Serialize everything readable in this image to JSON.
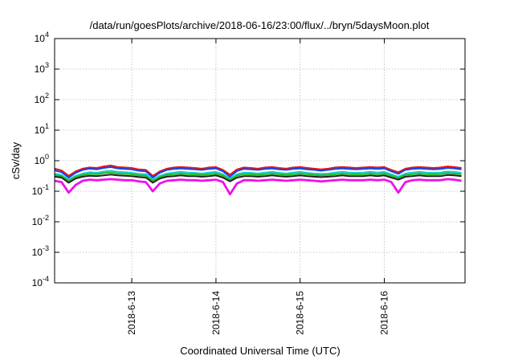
{
  "chart_data": {
    "type": "line",
    "title": "/data/run/goesPlots/archive/2018-06-16/23:00/flux/../bryn/5daysMoon.plot",
    "xlabel": "Coordinated Universal Time (UTC)",
    "ylabel": "cSv/day",
    "yscale": "log",
    "ylim": [
      0.0001,
      10000
    ],
    "xlim": [
      "2018-06-12 02:00",
      "2018-06-16 23:00"
    ],
    "grid": true,
    "y_ticks": [
      {
        "base": "10",
        "exp": "4",
        "value": 10000
      },
      {
        "base": "10",
        "exp": "3",
        "value": 1000
      },
      {
        "base": "10",
        "exp": "2",
        "value": 100
      },
      {
        "base": "10",
        "exp": "1",
        "value": 10
      },
      {
        "base": "10",
        "exp": "0",
        "value": 1
      },
      {
        "base": "10",
        "exp": "-1",
        "value": 0.1
      },
      {
        "base": "10",
        "exp": "-2",
        "value": 0.01
      },
      {
        "base": "10",
        "exp": "-3",
        "value": 0.001
      },
      {
        "base": "10",
        "exp": "-4",
        "value": 0.0001
      }
    ],
    "x_ticks": [
      {
        "label": "2018-6-13",
        "date": "2018-06-13 00:00"
      },
      {
        "label": "2018-6-14",
        "date": "2018-06-14 00:00"
      },
      {
        "label": "2018-6-15",
        "date": "2018-06-15 00:00"
      },
      {
        "label": "2018-6-16",
        "date": "2018-06-16 00:00"
      }
    ],
    "x": [
      "2018-06-12 02:00",
      "2018-06-12 04:00",
      "2018-06-12 06:00",
      "2018-06-12 08:00",
      "2018-06-12 10:00",
      "2018-06-12 12:00",
      "2018-06-12 14:00",
      "2018-06-12 16:00",
      "2018-06-12 18:00",
      "2018-06-12 20:00",
      "2018-06-12 22:00",
      "2018-06-13 00:00",
      "2018-06-13 02:00",
      "2018-06-13 04:00",
      "2018-06-13 06:00",
      "2018-06-13 08:00",
      "2018-06-13 10:00",
      "2018-06-13 12:00",
      "2018-06-13 14:00",
      "2018-06-13 16:00",
      "2018-06-13 18:00",
      "2018-06-13 20:00",
      "2018-06-13 22:00",
      "2018-06-14 00:00",
      "2018-06-14 02:00",
      "2018-06-14 04:00",
      "2018-06-14 06:00",
      "2018-06-14 08:00",
      "2018-06-14 10:00",
      "2018-06-14 12:00",
      "2018-06-14 14:00",
      "2018-06-14 16:00",
      "2018-06-14 18:00",
      "2018-06-14 20:00",
      "2018-06-14 22:00",
      "2018-06-15 00:00",
      "2018-06-15 02:00",
      "2018-06-15 04:00",
      "2018-06-15 06:00",
      "2018-06-15 08:00",
      "2018-06-15 10:00",
      "2018-06-15 12:00",
      "2018-06-15 14:00",
      "2018-06-15 16:00",
      "2018-06-15 18:00",
      "2018-06-15 20:00",
      "2018-06-15 22:00",
      "2018-06-16 00:00",
      "2018-06-16 02:00",
      "2018-06-16 04:00",
      "2018-06-16 06:00",
      "2018-06-16 08:00",
      "2018-06-16 10:00",
      "2018-06-16 12:00",
      "2018-06-16 14:00",
      "2018-06-16 16:00",
      "2018-06-16 18:00",
      "2018-06-16 20:00",
      "2018-06-16 22:00"
    ],
    "series": [
      {
        "color": "#ee1111",
        "values": [
          0.55,
          0.48,
          0.32,
          0.45,
          0.55,
          0.6,
          0.58,
          0.65,
          0.7,
          0.62,
          0.6,
          0.58,
          0.52,
          0.5,
          0.32,
          0.45,
          0.55,
          0.6,
          0.62,
          0.6,
          0.58,
          0.55,
          0.6,
          0.62,
          0.5,
          0.35,
          0.52,
          0.6,
          0.58,
          0.55,
          0.6,
          0.62,
          0.58,
          0.55,
          0.6,
          0.62,
          0.58,
          0.55,
          0.52,
          0.55,
          0.6,
          0.62,
          0.6,
          0.58,
          0.6,
          0.62,
          0.6,
          0.62,
          0.5,
          0.42,
          0.55,
          0.6,
          0.62,
          0.6,
          0.58,
          0.6,
          0.65,
          0.62,
          0.58
        ]
      },
      {
        "color": "#1144ee",
        "values": [
          0.48,
          0.42,
          0.28,
          0.4,
          0.5,
          0.55,
          0.52,
          0.58,
          0.62,
          0.56,
          0.54,
          0.52,
          0.47,
          0.45,
          0.28,
          0.4,
          0.5,
          0.54,
          0.56,
          0.54,
          0.52,
          0.5,
          0.54,
          0.56,
          0.45,
          0.3,
          0.46,
          0.54,
          0.52,
          0.5,
          0.54,
          0.56,
          0.52,
          0.5,
          0.54,
          0.56,
          0.52,
          0.5,
          0.47,
          0.5,
          0.54,
          0.56,
          0.54,
          0.52,
          0.54,
          0.56,
          0.54,
          0.56,
          0.45,
          0.37,
          0.5,
          0.54,
          0.56,
          0.54,
          0.52,
          0.54,
          0.58,
          0.56,
          0.52
        ]
      },
      {
        "color": "#11cccc",
        "values": [
          0.38,
          0.34,
          0.24,
          0.32,
          0.38,
          0.42,
          0.4,
          0.44,
          0.47,
          0.43,
          0.42,
          0.4,
          0.37,
          0.36,
          0.24,
          0.32,
          0.38,
          0.41,
          0.43,
          0.41,
          0.4,
          0.38,
          0.41,
          0.43,
          0.36,
          0.26,
          0.36,
          0.41,
          0.4,
          0.38,
          0.41,
          0.43,
          0.4,
          0.38,
          0.41,
          0.43,
          0.4,
          0.38,
          0.37,
          0.38,
          0.41,
          0.43,
          0.41,
          0.4,
          0.41,
          0.43,
          0.41,
          0.43,
          0.36,
          0.3,
          0.38,
          0.41,
          0.43,
          0.41,
          0.4,
          0.41,
          0.44,
          0.43,
          0.4
        ]
      },
      {
        "color": "#22bb22",
        "values": [
          0.34,
          0.31,
          0.22,
          0.29,
          0.34,
          0.37,
          0.36,
          0.39,
          0.41,
          0.38,
          0.37,
          0.36,
          0.33,
          0.32,
          0.22,
          0.29,
          0.34,
          0.36,
          0.38,
          0.36,
          0.36,
          0.34,
          0.36,
          0.38,
          0.32,
          0.24,
          0.32,
          0.36,
          0.36,
          0.34,
          0.36,
          0.38,
          0.36,
          0.34,
          0.36,
          0.38,
          0.36,
          0.34,
          0.33,
          0.34,
          0.36,
          0.38,
          0.36,
          0.36,
          0.36,
          0.38,
          0.36,
          0.38,
          0.32,
          0.27,
          0.34,
          0.36,
          0.38,
          0.36,
          0.36,
          0.36,
          0.39,
          0.38,
          0.36
        ]
      },
      {
        "color": "#222222",
        "values": [
          0.3,
          0.28,
          0.19,
          0.26,
          0.3,
          0.32,
          0.31,
          0.33,
          0.35,
          0.33,
          0.32,
          0.31,
          0.29,
          0.28,
          0.19,
          0.26,
          0.3,
          0.31,
          0.33,
          0.31,
          0.31,
          0.3,
          0.31,
          0.33,
          0.28,
          0.21,
          0.28,
          0.31,
          0.31,
          0.3,
          0.31,
          0.33,
          0.31,
          0.3,
          0.31,
          0.33,
          0.31,
          0.3,
          0.29,
          0.3,
          0.31,
          0.33,
          0.31,
          0.31,
          0.31,
          0.33,
          0.31,
          0.33,
          0.28,
          0.24,
          0.3,
          0.31,
          0.33,
          0.31,
          0.31,
          0.31,
          0.34,
          0.33,
          0.31
        ]
      },
      {
        "color": "#ee11ee",
        "values": [
          0.22,
          0.2,
          0.09,
          0.16,
          0.22,
          0.24,
          0.23,
          0.24,
          0.25,
          0.24,
          0.23,
          0.23,
          0.21,
          0.2,
          0.1,
          0.18,
          0.22,
          0.23,
          0.24,
          0.23,
          0.23,
          0.22,
          0.23,
          0.24,
          0.2,
          0.08,
          0.18,
          0.23,
          0.23,
          0.22,
          0.23,
          0.24,
          0.23,
          0.22,
          0.23,
          0.24,
          0.23,
          0.22,
          0.21,
          0.22,
          0.23,
          0.24,
          0.23,
          0.23,
          0.23,
          0.24,
          0.23,
          0.24,
          0.2,
          0.09,
          0.2,
          0.23,
          0.24,
          0.23,
          0.23,
          0.23,
          0.25,
          0.24,
          0.22
        ]
      }
    ]
  }
}
